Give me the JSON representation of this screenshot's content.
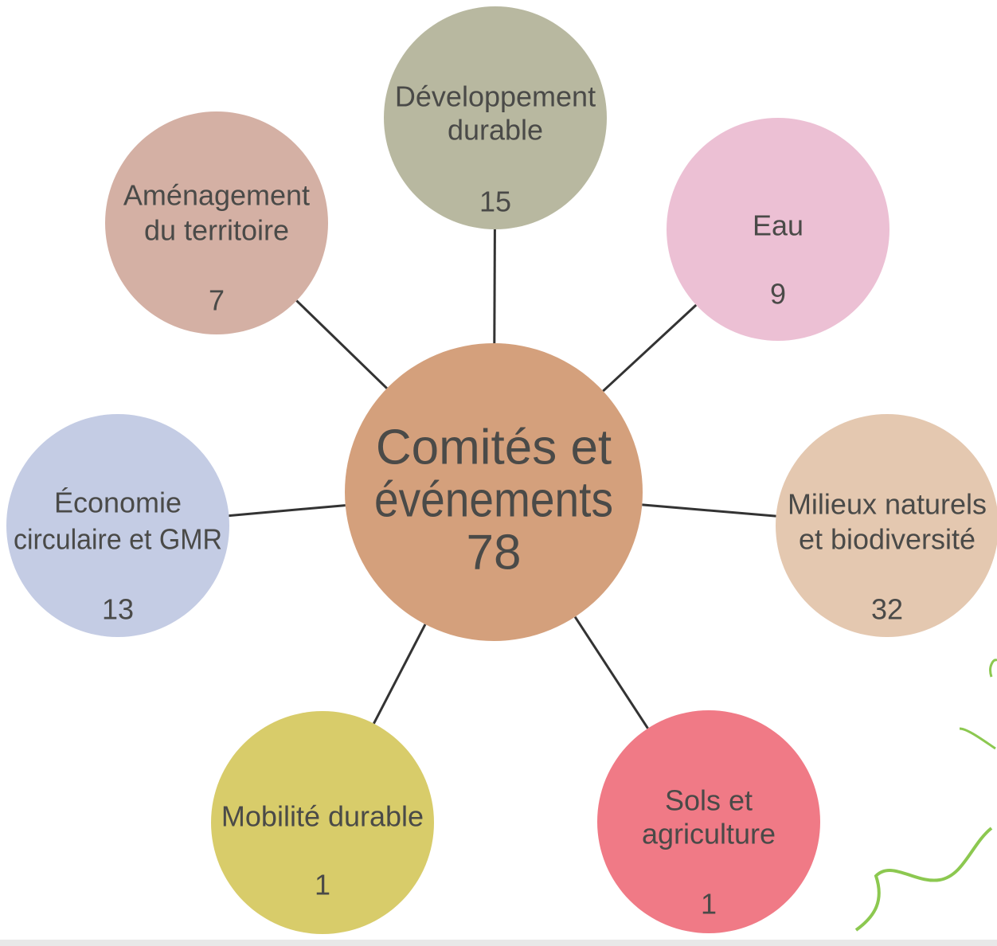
{
  "center": {
    "label": [
      "Comités et",
      "événements"
    ],
    "count": 78
  },
  "nodes": [
    {
      "label": [
        "Développement",
        "durable"
      ],
      "count": 15
    },
    {
      "label": [
        "Eau"
      ],
      "count": 9
    },
    {
      "label": [
        "Milieux naturels",
        "et biodiversité"
      ],
      "count": 32
    },
    {
      "label": [
        "Sols et",
        "agriculture"
      ],
      "count": 1
    },
    {
      "label": [
        "Mobilité durable"
      ],
      "count": 1
    },
    {
      "label": [
        "Économie",
        "circulaire et GMR"
      ],
      "count": 13
    },
    {
      "label": [
        "Aménagement",
        "du territoire"
      ],
      "count": 7
    }
  ]
}
